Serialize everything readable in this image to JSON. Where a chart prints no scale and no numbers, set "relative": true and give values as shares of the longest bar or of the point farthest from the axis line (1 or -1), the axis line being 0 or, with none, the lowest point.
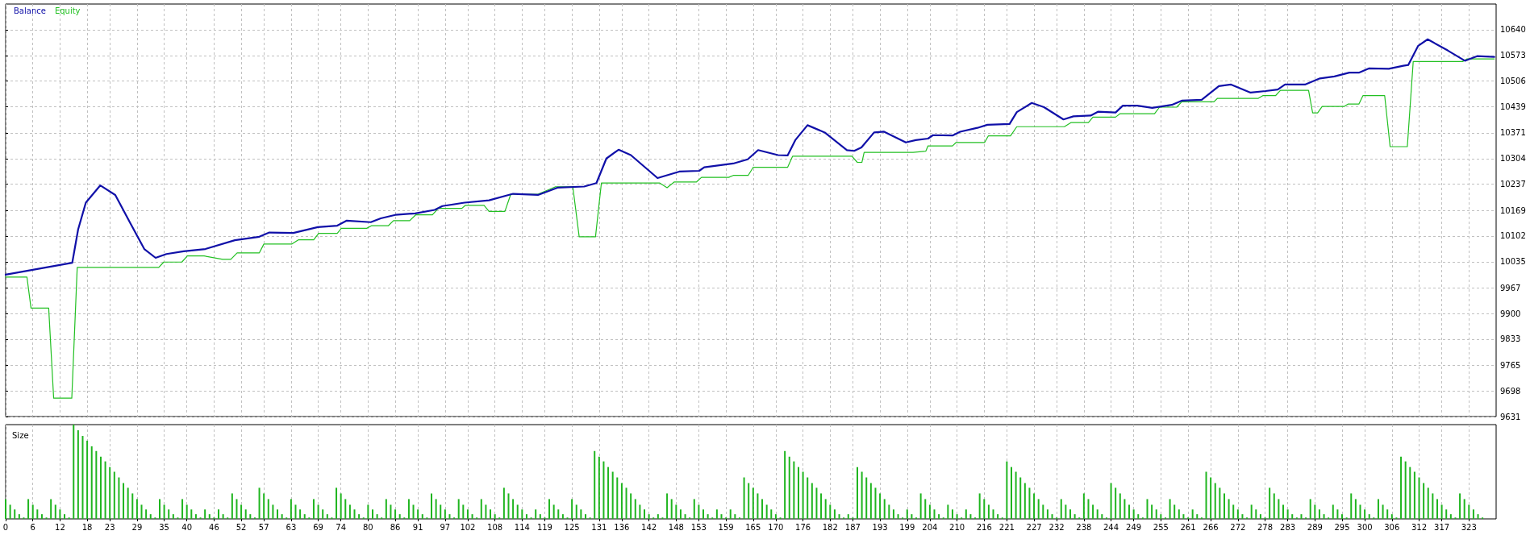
{
  "chart_data": [
    {
      "type": "line",
      "legend": "top left",
      "grid": true,
      "tick_labels": "y",
      "xlim": [
        0,
        329
      ],
      "xticks": [
        0,
        6,
        12,
        18,
        23,
        29,
        35,
        40,
        46,
        52,
        57,
        63,
        69,
        74,
        80,
        86,
        91,
        97,
        102,
        108,
        114,
        119,
        125,
        131,
        136,
        142,
        148,
        153,
        159,
        165,
        170,
        176,
        182,
        187,
        193,
        199,
        204,
        210,
        216,
        221,
        227,
        232,
        238,
        244,
        249,
        255,
        261,
        266,
        272,
        278,
        283,
        289,
        295,
        300,
        306,
        312,
        317,
        323
      ],
      "ylim": [
        9631,
        10707
      ],
      "yticks": [
        9631,
        9698,
        9765,
        9833,
        9900,
        9967,
        10035,
        10102,
        10169,
        10237,
        10304,
        10371,
        10439,
        10506,
        10573,
        10640
      ],
      "series": [
        {
          "name": "Balance",
          "color": "#1010a8",
          "x": [
            0,
            14.7,
            16,
            17.7,
            20.9,
            24.2,
            27.4,
            30.6,
            33.1,
            35.5,
            39.3,
            44.1,
            50.6,
            56,
            58.2,
            63.5,
            68.9,
            73.2,
            75.3,
            80.6,
            82.8,
            86,
            90.4,
            94.7,
            96.4,
            101.3,
            106.7,
            111,
            112,
            117.5,
            121.8,
            127.7,
            130.4,
            132.6,
            135.3,
            138,
            143.9,
            148.7,
            153.1,
            154.2,
            160.6,
            163.8,
            166.1,
            170.5,
            172.6,
            174.3,
            177,
            180.8,
            185.7,
            187.3,
            188.9,
            191.7,
            193.9,
            198.7,
            200.9,
            203.6,
            204.7,
            209,
            210.7,
            214.5,
            216.7,
            221.6,
            223.2,
            226.5,
            229.2,
            233.5,
            235.7,
            239.5,
            241.1,
            245,
            246.6,
            249.8,
            253.1,
            257.4,
            259.6,
            264,
            267.8,
            270.5,
            274.8,
            278.1,
            280.8,
            282.4,
            286.8,
            290.1,
            293.3,
            296.6,
            298.7,
            300.9,
            305.3,
            308.5,
            309.6,
            311.8,
            313.9,
            318.3,
            322.1,
            324.8,
            328.6
          ],
          "values": [
            10001,
            10032,
            10119,
            10189,
            10234,
            10209,
            10138,
            10068,
            10045,
            10055,
            10062,
            10068,
            10091,
            10100,
            10111,
            10110,
            10125,
            10129,
            10142,
            10138,
            10148,
            10157,
            10161,
            10170,
            10180,
            10189,
            10195,
            10209,
            10212,
            10209,
            10228,
            10231,
            10240,
            10304,
            10327,
            10313,
            10253,
            10270,
            10272,
            10281,
            10291,
            10302,
            10326,
            10313,
            10312,
            10352,
            10391,
            10372,
            10326,
            10324,
            10333,
            10372,
            10374,
            10346,
            10352,
            10356,
            10365,
            10364,
            10374,
            10384,
            10392,
            10394,
            10425,
            10449,
            10438,
            10406,
            10414,
            10416,
            10426,
            10424,
            10442,
            10442,
            10436,
            10444,
            10455,
            10457,
            10493,
            10497,
            10476,
            10480,
            10484,
            10497,
            10497,
            10513,
            10518,
            10528,
            10528,
            10539,
            10538,
            10546,
            10548,
            10598,
            10615,
            10586,
            10559,
            10571,
            10569
          ]
        },
        {
          "name": "Equity",
          "color": "#22c022",
          "x": [
            0,
            4.7,
            5.6,
            9.5,
            10.6,
            14.6,
            15.8,
            33.8,
            34.9,
            38.9,
            40.1,
            43.8,
            47.9,
            49.7,
            51.1,
            56,
            57,
            63.2,
            64.6,
            68,
            69.1,
            73.2,
            74.1,
            79.7,
            80.8,
            84.5,
            85.6,
            89.2,
            90.5,
            94.2,
            95.5,
            100.7,
            101.5,
            105.6,
            106.7,
            110.2,
            111.5,
            117.5,
            121.3,
            125.2,
            126.6,
            130.2,
            131.5,
            144.4,
            146,
            147.6,
            152.5,
            153.6,
            159.6,
            160.6,
            163.9,
            165,
            172.6,
            173.7,
            186.8,
            188,
            189,
            189.5,
            200.3,
            203.1,
            203.6,
            209,
            209.8,
            216.1,
            216.9,
            221.8,
            223.2,
            233.7,
            235.2,
            239,
            240,
            245,
            246,
            253.6,
            254.7,
            258.5,
            259.6,
            266.7,
            267.5,
            276.5,
            277.5,
            280.3,
            281.4,
            287.6,
            288.5,
            289.6,
            290.6,
            295.5,
            296.3,
            298.7,
            299.6,
            304.4,
            305.6,
            309.4,
            310.7,
            321.6,
            322.6,
            328.6
          ],
          "values": [
            9995,
            9995,
            9914,
            9914,
            9679,
            9679,
            10020,
            10020,
            10034,
            10034,
            10050,
            10050,
            10041,
            10041,
            10058,
            10058,
            10081,
            10081,
            10092,
            10092,
            10109,
            10109,
            10122,
            10122,
            10129,
            10129,
            10142,
            10142,
            10157,
            10157,
            10174,
            10174,
            10182,
            10182,
            10166,
            10166,
            10211,
            10211,
            10230,
            10230,
            10100,
            10100,
            10240,
            10240,
            10228,
            10243,
            10243,
            10255,
            10255,
            10260,
            10260,
            10281,
            10281,
            10310,
            10310,
            10294,
            10294,
            10320,
            10320,
            10323,
            10337,
            10337,
            10346,
            10346,
            10363,
            10363,
            10387,
            10387,
            10398,
            10398,
            10412,
            10412,
            10421,
            10421,
            10438,
            10438,
            10452,
            10452,
            10461,
            10461,
            10468,
            10468,
            10482,
            10482,
            10423,
            10423,
            10440,
            10440,
            10446,
            10446,
            10468,
            10468,
            10335,
            10335,
            10557,
            10557,
            10564,
            10564
          ]
        }
      ]
    },
    {
      "type": "bar",
      "title": "Size",
      "relative": true,
      "grid": "x",
      "tick_labels": "x",
      "color": "#1fb51f",
      "xlim": [
        0,
        329
      ],
      "xticks": [
        0,
        6,
        12,
        18,
        23,
        29,
        35,
        40,
        46,
        52,
        57,
        63,
        69,
        74,
        80,
        86,
        91,
        97,
        102,
        108,
        114,
        119,
        125,
        131,
        136,
        142,
        148,
        153,
        159,
        165,
        170,
        176,
        182,
        187,
        193,
        199,
        204,
        210,
        216,
        221,
        227,
        232,
        238,
        244,
        249,
        255,
        261,
        266,
        272,
        278,
        283,
        289,
        295,
        300,
        306,
        312,
        317,
        323
      ],
      "x": [
        0,
        1,
        2,
        3,
        4,
        5,
        6,
        7,
        8,
        9,
        10,
        11,
        12,
        13,
        14,
        15,
        16,
        17,
        18,
        19,
        20,
        21,
        22,
        23,
        24,
        25,
        26,
        27,
        28,
        29,
        30,
        31,
        32,
        33,
        34,
        35,
        36,
        37,
        38,
        39,
        40,
        41,
        42,
        43,
        44,
        45,
        46,
        47,
        48,
        49,
        50,
        51,
        52,
        53,
        54,
        55,
        56,
        57,
        58,
        59,
        60,
        61,
        62,
        63,
        64,
        65,
        66,
        67,
        68,
        69,
        70,
        71,
        72,
        73,
        74,
        75,
        76,
        77,
        78,
        79,
        80,
        81,
        82,
        83,
        84,
        85,
        86,
        87,
        88,
        89,
        90,
        91,
        92,
        93,
        94,
        95,
        96,
        97,
        98,
        99,
        100,
        101,
        102,
        103,
        104,
        105,
        106,
        107,
        108,
        109,
        110,
        111,
        112,
        113,
        114,
        115,
        116,
        117,
        118,
        119,
        120,
        121,
        122,
        123,
        124,
        125,
        126,
        127,
        128,
        129,
        130,
        131,
        132,
        133,
        134,
        135,
        136,
        137,
        138,
        139,
        140,
        141,
        142,
        143,
        144,
        145,
        146,
        147,
        148,
        149,
        150,
        151,
        152,
        153,
        154,
        155,
        156,
        157,
        158,
        159,
        160,
        161,
        162,
        163,
        164,
        165,
        166,
        167,
        168,
        169,
        170,
        171,
        172,
        173,
        174,
        175,
        176,
        177,
        178,
        179,
        180,
        181,
        182,
        183,
        184,
        185,
        186,
        187,
        188,
        189,
        190,
        191,
        192,
        193,
        194,
        195,
        196,
        197,
        198,
        199,
        200,
        201,
        202,
        203,
        204,
        205,
        206,
        207,
        208,
        209,
        210,
        211,
        212,
        213,
        214,
        215,
        216,
        217,
        218,
        219,
        220,
        221,
        222,
        223,
        224,
        225,
        226,
        227,
        228,
        229,
        230,
        231,
        232,
        233,
        234,
        235,
        236,
        237,
        238,
        239,
        240,
        241,
        242,
        243,
        244,
        245,
        246,
        247,
        248,
        249,
        250,
        251,
        252,
        253,
        254,
        255,
        256,
        257,
        258,
        259,
        260,
        261,
        262,
        263,
        264,
        265,
        266,
        267,
        268,
        269,
        270,
        271,
        272,
        273,
        274,
        275,
        276,
        277,
        278,
        279,
        280,
        281,
        282,
        283,
        284,
        285,
        286,
        287,
        288,
        289,
        290,
        291,
        292,
        293,
        294,
        295,
        296,
        297,
        298,
        299,
        300,
        301,
        302,
        303,
        304,
        305,
        306,
        307,
        308,
        309,
        310,
        311,
        312,
        313,
        314,
        315,
        316,
        317,
        318,
        319,
        320,
        321,
        322,
        323,
        324,
        325,
        326
      ],
      "values": [
        0.21,
        0.15,
        0.1,
        0.05,
        0.015,
        0.21,
        0.15,
        0.1,
        0.05,
        0.015,
        0.21,
        0.15,
        0.1,
        0.05,
        0.015,
        1,
        0.94,
        0.88,
        0.83,
        0.77,
        0.72,
        0.66,
        0.61,
        0.55,
        0.5,
        0.44,
        0.38,
        0.33,
        0.27,
        0.21,
        0.15,
        0.1,
        0.05,
        0.015,
        0.21,
        0.15,
        0.1,
        0.05,
        0.015,
        0.21,
        0.15,
        0.1,
        0.05,
        0.015,
        0.1,
        0.05,
        0.015,
        0.1,
        0.05,
        0.015,
        0.27,
        0.21,
        0.15,
        0.1,
        0.05,
        0.015,
        0.33,
        0.27,
        0.21,
        0.15,
        0.1,
        0.05,
        0.015,
        0.21,
        0.15,
        0.1,
        0.05,
        0.015,
        0.21,
        0.15,
        0.1,
        0.05,
        0.015,
        0.33,
        0.27,
        0.21,
        0.15,
        0.1,
        0.05,
        0.015,
        0.15,
        0.1,
        0.05,
        0.015,
        0.21,
        0.15,
        0.1,
        0.05,
        0.015,
        0.21,
        0.15,
        0.1,
        0.05,
        0.015,
        0.27,
        0.21,
        0.15,
        0.1,
        0.05,
        0.015,
        0.21,
        0.15,
        0.1,
        0.05,
        0.015,
        0.21,
        0.15,
        0.1,
        0.05,
        0.015,
        0.33,
        0.27,
        0.21,
        0.15,
        0.1,
        0.05,
        0.015,
        0.1,
        0.05,
        0.015,
        0.21,
        0.15,
        0.1,
        0.05,
        0.015,
        0.21,
        0.15,
        0.1,
        0.05,
        0.015,
        0.72,
        0.66,
        0.61,
        0.55,
        0.5,
        0.44,
        0.38,
        0.33,
        0.27,
        0.21,
        0.15,
        0.1,
        0.05,
        0.015,
        0.05,
        0.015,
        0.27,
        0.21,
        0.15,
        0.1,
        0.05,
        0.015,
        0.21,
        0.15,
        0.1,
        0.05,
        0.015,
        0.1,
        0.05,
        0.015,
        0.1,
        0.05,
        0.015,
        0.44,
        0.38,
        0.33,
        0.27,
        0.21,
        0.15,
        0.1,
        0.05,
        0.015,
        0.72,
        0.66,
        0.61,
        0.55,
        0.5,
        0.44,
        0.38,
        0.33,
        0.27,
        0.21,
        0.15,
        0.1,
        0.05,
        0.015,
        0.05,
        0.015,
        0.55,
        0.5,
        0.44,
        0.38,
        0.33,
        0.27,
        0.21,
        0.15,
        0.1,
        0.05,
        0.015,
        0.1,
        0.05,
        0.015,
        0.27,
        0.21,
        0.15,
        0.1,
        0.05,
        0.015,
        0.15,
        0.1,
        0.05,
        0.015,
        0.1,
        0.05,
        0.015,
        0.27,
        0.21,
        0.15,
        0.1,
        0.05,
        0.015,
        0.61,
        0.55,
        0.5,
        0.44,
        0.38,
        0.33,
        0.27,
        0.21,
        0.15,
        0.1,
        0.05,
        0.015,
        0.21,
        0.15,
        0.1,
        0.05,
        0.015,
        0.27,
        0.21,
        0.15,
        0.1,
        0.05,
        0.015,
        0.38,
        0.33,
        0.27,
        0.21,
        0.15,
        0.1,
        0.05,
        0.015,
        0.21,
        0.15,
        0.1,
        0.05,
        0.015,
        0.21,
        0.15,
        0.1,
        0.05,
        0.015,
        0.1,
        0.05,
        0.015,
        0.5,
        0.44,
        0.38,
        0.33,
        0.27,
        0.21,
        0.15,
        0.1,
        0.05,
        0.015,
        0.15,
        0.1,
        0.05,
        0.015,
        0.33,
        0.27,
        0.21,
        0.15,
        0.1,
        0.05,
        0.015,
        0.05,
        0.015,
        0.21,
        0.15,
        0.1,
        0.05,
        0.015,
        0.15,
        0.1,
        0.05,
        0.015,
        0.27,
        0.21,
        0.15,
        0.1,
        0.05,
        0.015,
        0.21,
        0.15,
        0.1,
        0.05,
        0.015,
        0.66,
        0.61,
        0.55,
        0.5,
        0.44,
        0.38,
        0.33,
        0.27,
        0.21,
        0.15,
        0.1,
        0.05,
        0.015,
        0.27,
        0.21,
        0.15,
        0.1,
        0.05,
        0.015
      ]
    }
  ]
}
